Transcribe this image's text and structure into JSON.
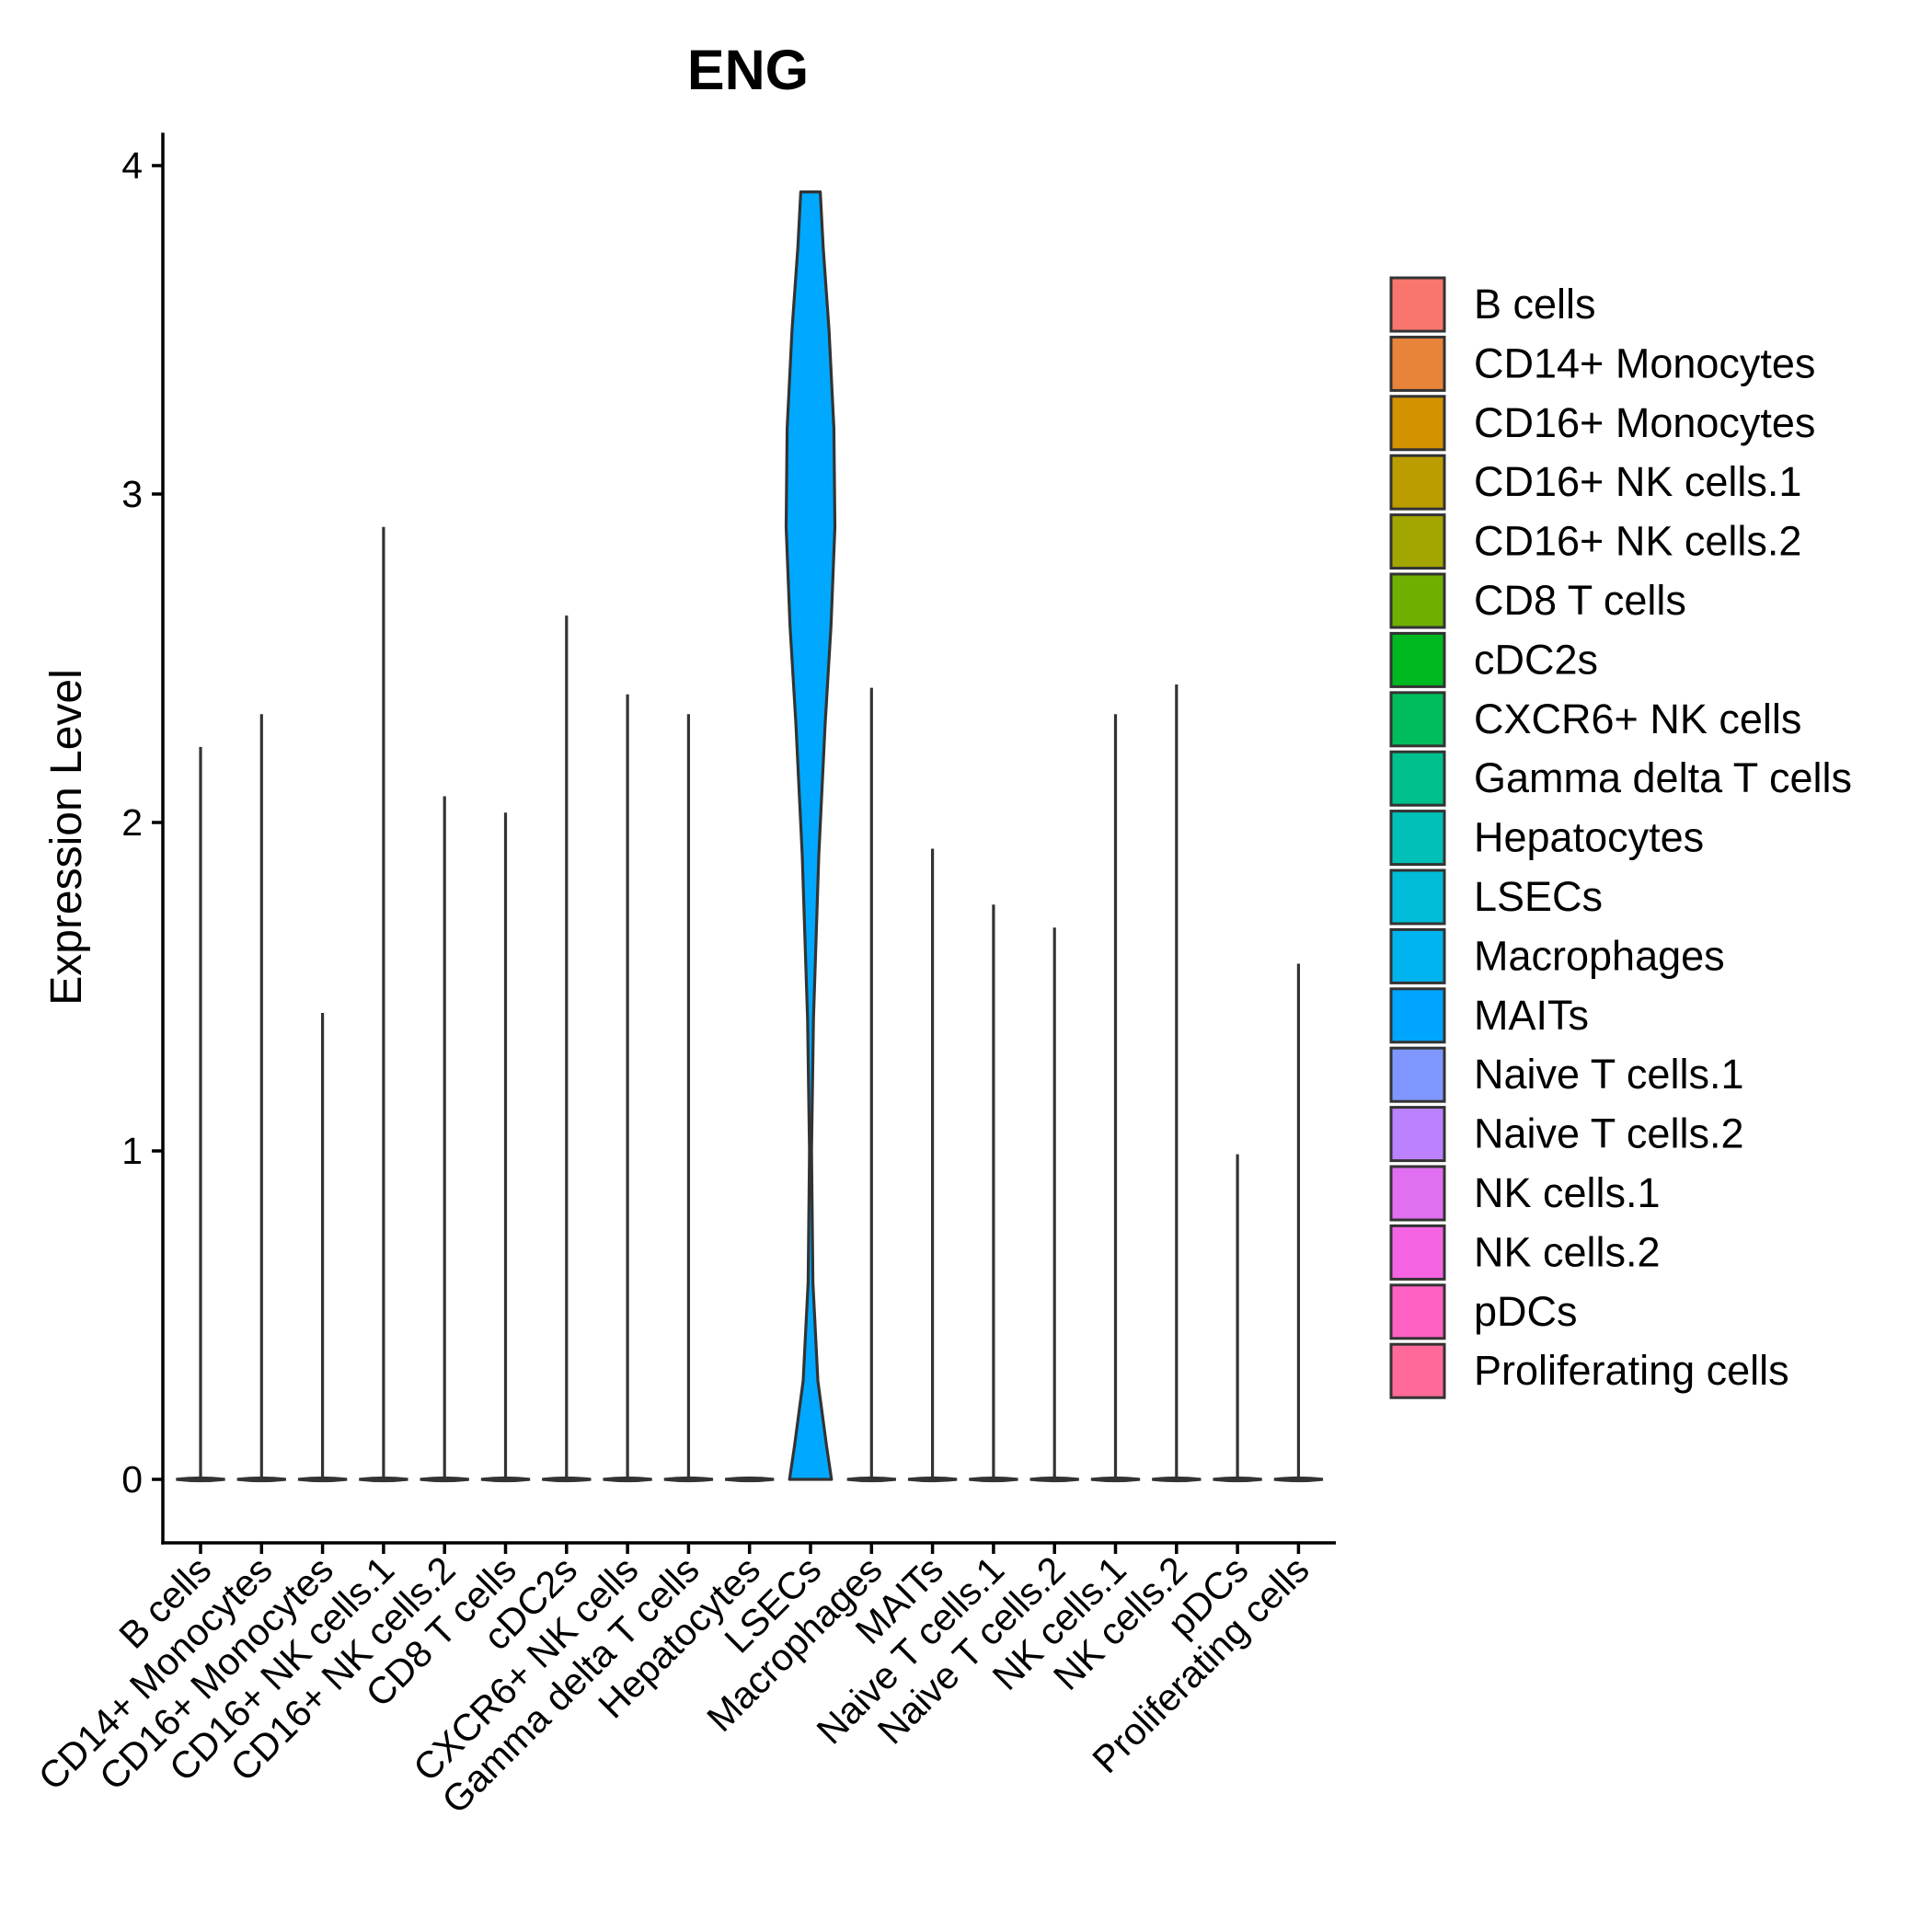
{
  "chart_data": {
    "type": "violin",
    "title": "ENG",
    "xlabel": "",
    "ylabel": "Expression Level",
    "ylim": [
      -0.19,
      4.1
    ],
    "yticks": [
      0,
      1,
      2,
      3,
      4
    ],
    "grid": false,
    "legend_position": "right",
    "categories": [
      "B cells",
      "CD14+ Monocytes",
      "CD16+ Monocytes",
      "CD16+ NK cells.1",
      "CD16+ NK cells.2",
      "CD8 T cells",
      "cDC2s",
      "CXCR6+ NK cells",
      "Gamma delta T cells",
      "Hepatocytes",
      "LSECs",
      "Macrophages",
      "MAITs",
      "Naive T cells.1",
      "Naive T cells.2",
      "NK cells.1",
      "NK cells.2",
      "pDCs",
      "Proliferating cells"
    ],
    "max_values": [
      2.23,
      2.33,
      1.42,
      2.9,
      2.08,
      2.03,
      2.63,
      2.39,
      2.33,
      0,
      3.92,
      2.41,
      1.92,
      1.75,
      1.68,
      2.33,
      2.42,
      0.99,
      1.57
    ],
    "min_values": [
      0,
      0,
      0,
      0,
      0,
      0,
      0,
      0,
      0,
      0,
      0,
      0,
      0,
      0,
      0,
      0,
      0,
      0,
      0
    ],
    "colors": [
      "#F8766D",
      "#E68613",
      "#CD9600",
      "#ABA300",
      "#7CAE00",
      "#0CB702",
      "#00BE67",
      "#00C19A",
      "#00BFC4",
      "#00B8E7",
      "#00A9FF",
      "#8494FF",
      "#C77CFF",
      "#ED68ED",
      "#FF61CC",
      "#FF68A1",
      "#F8766D",
      "#E68613",
      "#CD9600"
    ],
    "legend_colors": [
      "#F8766D",
      "#E8833A",
      "#D39200",
      "#BB9D00",
      "#A3A500",
      "#6EAF00",
      "#00B81F",
      "#00BD5C",
      "#00C08D",
      "#00C0B8",
      "#00BCD8",
      "#00B4EF",
      "#00A5FF",
      "#7F96FF",
      "#BB81FF",
      "#E16FF1",
      "#F565E3",
      "#FF61C3",
      "#FF6A98"
    ],
    "lsecs_density_profile": [
      {
        "y": 0.0,
        "hw": 0.43
      },
      {
        "y": 0.1,
        "hw": 0.33
      },
      {
        "y": 0.3,
        "hw": 0.15
      },
      {
        "y": 0.6,
        "hw": 0.05
      },
      {
        "y": 1.0,
        "hw": 0.02
      },
      {
        "y": 1.4,
        "hw": 0.06
      },
      {
        "y": 1.9,
        "hw": 0.17
      },
      {
        "y": 2.3,
        "hw": 0.3
      },
      {
        "y": 2.6,
        "hw": 0.42
      },
      {
        "y": 2.9,
        "hw": 0.5
      },
      {
        "y": 3.2,
        "hw": 0.48
      },
      {
        "y": 3.5,
        "hw": 0.38
      },
      {
        "y": 3.75,
        "hw": 0.26
      },
      {
        "y": 3.92,
        "hw": 0.2
      }
    ]
  }
}
